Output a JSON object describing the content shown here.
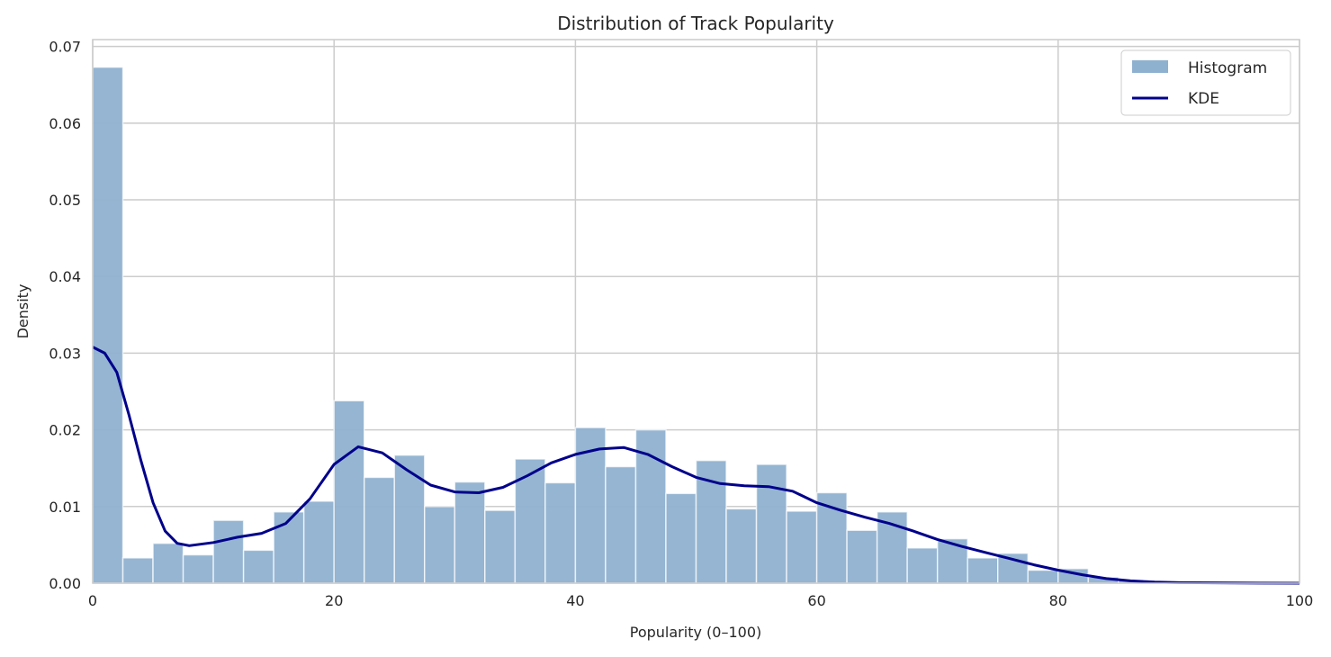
{
  "chart_data": {
    "type": "bar",
    "title": "Distribution of Track Popularity",
    "xlabel": "Popularity (0–100)",
    "ylabel": "Density",
    "xlim": [
      0,
      100
    ],
    "ylim": [
      0,
      0.0709
    ],
    "xticks": [
      "0",
      "20",
      "40",
      "60",
      "80",
      "100"
    ],
    "yticks": [
      "0.00",
      "0.01",
      "0.02",
      "0.03",
      "0.04",
      "0.05",
      "0.06",
      "0.07"
    ],
    "grid": true,
    "legend_position": "top-right",
    "bin_width": 2.5,
    "series": [
      {
        "name": "Histogram",
        "type": "histogram",
        "color": "#8fb1d0",
        "bin_starts": [
          0,
          2.5,
          5,
          7.5,
          10,
          12.5,
          15,
          17.5,
          20,
          22.5,
          25,
          27.5,
          30,
          32.5,
          35,
          37.5,
          40,
          42.5,
          45,
          47.5,
          50,
          52.5,
          55,
          57.5,
          60,
          62.5,
          65,
          67.5,
          70,
          72.5,
          75,
          77.5,
          80,
          82.5,
          85
        ],
        "values": [
          0.0673,
          0.0033,
          0.0052,
          0.0037,
          0.0082,
          0.0043,
          0.0093,
          0.0107,
          0.0238,
          0.0138,
          0.0167,
          0.01,
          0.0132,
          0.0095,
          0.0162,
          0.0131,
          0.0203,
          0.0152,
          0.02,
          0.0117,
          0.016,
          0.0097,
          0.0155,
          0.0094,
          0.0118,
          0.0069,
          0.0093,
          0.0046,
          0.0058,
          0.0033,
          0.0039,
          0.0017,
          0.0019,
          0.0008,
          0.0004
        ]
      },
      {
        "name": "KDE",
        "type": "line",
        "color": "#00008b",
        "x": [
          0,
          1,
          2,
          3,
          4,
          5,
          6,
          7,
          8,
          10,
          12,
          14,
          16,
          18,
          20,
          22,
          24,
          26,
          28,
          30,
          32,
          34,
          36,
          38,
          40,
          42,
          44,
          46,
          48,
          50,
          52,
          54,
          56,
          58,
          60,
          62,
          64,
          66,
          68,
          70,
          72,
          74,
          76,
          78,
          80,
          82,
          84,
          86,
          88,
          90,
          95,
          100
        ],
        "y": [
          0.0308,
          0.03,
          0.0275,
          0.022,
          0.016,
          0.0105,
          0.0068,
          0.0052,
          0.0049,
          0.0053,
          0.006,
          0.0065,
          0.0078,
          0.011,
          0.0155,
          0.0178,
          0.017,
          0.0148,
          0.0128,
          0.0119,
          0.0118,
          0.0125,
          0.014,
          0.0157,
          0.0168,
          0.0175,
          0.0177,
          0.0168,
          0.0152,
          0.0138,
          0.013,
          0.0127,
          0.0126,
          0.012,
          0.0105,
          0.0095,
          0.0086,
          0.0078,
          0.0068,
          0.0057,
          0.0048,
          0.004,
          0.0032,
          0.0024,
          0.0017,
          0.0011,
          0.0006,
          0.0003,
          0.00015,
          7e-05,
          2e-05,
          0
        ]
      }
    ]
  }
}
